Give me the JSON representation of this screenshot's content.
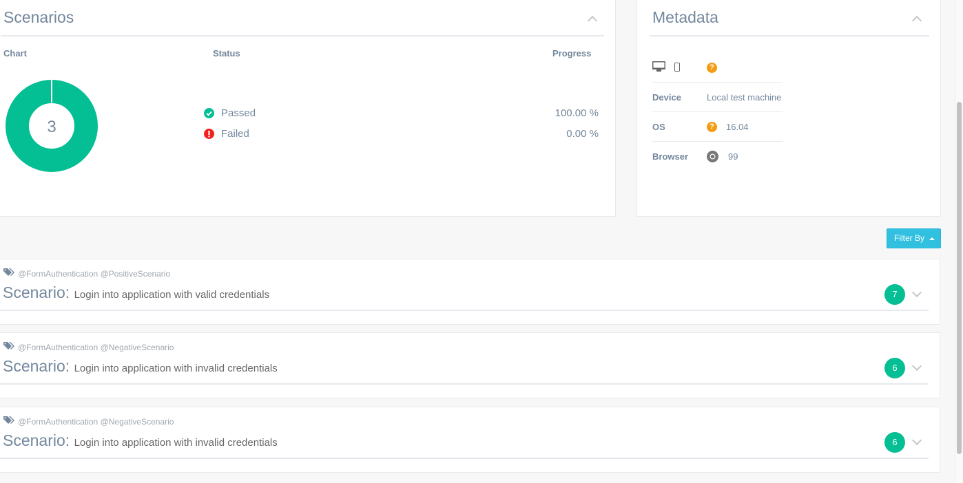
{
  "scenarios_panel": {
    "title": "Scenarios",
    "headers": {
      "chart": "Chart",
      "status": "Status",
      "progress": "Progress"
    },
    "chart_total": "3",
    "rows": [
      {
        "status": "Passed",
        "progress": "100.00 %",
        "color": "#03bf93",
        "icon": "check-circle-icon"
      },
      {
        "status": "Failed",
        "progress": "0.00 %",
        "color": "#f2211f",
        "icon": "exclamation-circle-icon"
      }
    ]
  },
  "chart_data": {
    "type": "pie",
    "categories": [
      "Passed",
      "Failed"
    ],
    "values": [
      100,
      0
    ],
    "center_label": "3"
  },
  "metadata": {
    "title": "Metadata",
    "rows": [
      {
        "label": "Device",
        "value": "Local test machine"
      },
      {
        "label": "OS",
        "value": "16.04",
        "icon": "question-icon"
      },
      {
        "label": "Browser",
        "value": "99",
        "icon": "chrome-icon"
      }
    ]
  },
  "filter_button": "Filter By",
  "scenario_list": [
    {
      "tags": "@FormAuthentication @PositiveScenario",
      "keyword": "Scenario:",
      "name": "Login into application with valid credentials",
      "steps": "7"
    },
    {
      "tags": "@FormAuthentication @NegativeScenario",
      "keyword": "Scenario:",
      "name": "Login into application with invalid credentials",
      "steps": "6"
    },
    {
      "tags": "@FormAuthentication @NegativeScenario",
      "keyword": "Scenario:",
      "name": "Login into application with invalid credentials",
      "steps": "6"
    }
  ],
  "colors": {
    "accent": "#03bf93",
    "filter": "#31c0e0"
  }
}
